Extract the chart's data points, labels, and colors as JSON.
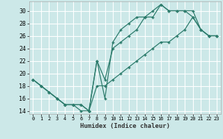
{
  "xlabel": "Humidex (Indice chaleur)",
  "bg_color": "#cce8e8",
  "grid_color": "#ffffff",
  "line_color": "#2a7a6a",
  "xlim": [
    -0.5,
    23.5
  ],
  "ylim": [
    13.5,
    31.5
  ],
  "xticks": [
    0,
    1,
    2,
    3,
    4,
    5,
    6,
    7,
    8,
    9,
    10,
    11,
    12,
    13,
    14,
    15,
    16,
    17,
    18,
    19,
    20,
    21,
    22,
    23
  ],
  "yticks": [
    14,
    16,
    18,
    20,
    22,
    24,
    26,
    28,
    30
  ],
  "line1_x": [
    0,
    1,
    2,
    3,
    4,
    5,
    6,
    7,
    8,
    9,
    10,
    11,
    12,
    13,
    14,
    15,
    16,
    17,
    18,
    19,
    20,
    21,
    22,
    23
  ],
  "line1_y": [
    19,
    18,
    17,
    16,
    15,
    15,
    15,
    14,
    22,
    16,
    25,
    27,
    28,
    29,
    29,
    30,
    31,
    30,
    30,
    30,
    29,
    27,
    26,
    26
  ],
  "line2_x": [
    0,
    1,
    2,
    3,
    4,
    5,
    6,
    7,
    8,
    9,
    10,
    11,
    12,
    13,
    14,
    15,
    16,
    17,
    18,
    19,
    20,
    21,
    22,
    23
  ],
  "line2_y": [
    19,
    18,
    17,
    16,
    15,
    15,
    15,
    14,
    22,
    19,
    24,
    25,
    26,
    27,
    29,
    29,
    31,
    30,
    30,
    30,
    30,
    27,
    26,
    26
  ],
  "line3_x": [
    0,
    1,
    2,
    3,
    4,
    5,
    6,
    7,
    8,
    9,
    10,
    11,
    12,
    13,
    14,
    15,
    16,
    17,
    18,
    19,
    20,
    21,
    22,
    23
  ],
  "line3_y": [
    19,
    18,
    17,
    16,
    15,
    15,
    14,
    14,
    18,
    18,
    19,
    20,
    21,
    22,
    23,
    24,
    25,
    25,
    26,
    27,
    29,
    27,
    26,
    26
  ]
}
